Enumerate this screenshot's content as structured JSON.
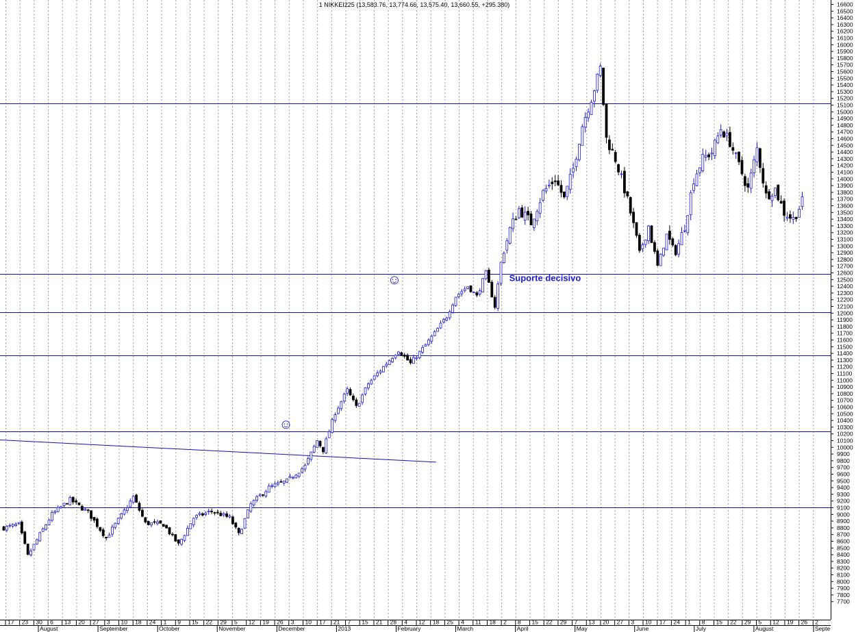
{
  "chart_data": {
    "type": "candlestick",
    "title": "1 NIKKEI225 (13,583.76, 13,774.66, 13,575.40, 13,660.55, +295.380)",
    "ylim": [
      7600,
      16600
    ],
    "ytick_step": 100,
    "grid": "vertical dotted",
    "colors": {
      "up": "#1a1ad6",
      "down": "#000000",
      "hline": "#1010b0",
      "annotation": "#1a1ad6"
    },
    "x_tick_labels": [
      "17",
      "23",
      "30",
      "6",
      "13",
      "20",
      "27",
      "3",
      "10",
      "18",
      "24",
      "1",
      "9",
      "15",
      "22",
      "29",
      "5",
      "12",
      "19",
      "26",
      "3",
      "10",
      "17",
      "21",
      "7",
      "15",
      "21",
      "28",
      "4",
      "12",
      "18",
      "25",
      "4",
      "11",
      "18",
      "2",
      "8",
      "15",
      "22",
      "29",
      "7",
      "13",
      "20",
      "27",
      "3",
      "10",
      "17",
      "24",
      "1",
      "8",
      "15",
      "22",
      "29",
      "5",
      "12",
      "19",
      "26",
      "2"
    ],
    "month_labels": [
      "August",
      "September",
      "October",
      "November",
      "December",
      "2013",
      "February",
      "March",
      "April",
      "May",
      "June",
      "July",
      "August",
      "Septe"
    ],
    "horizontal_lines": [
      15130,
      12580,
      12010,
      11370,
      10240,
      9110
    ],
    "trendline": {
      "from": [
        0,
        10110
      ],
      "to": [
        132,
        9780
      ]
    },
    "annotations": [
      {
        "text": "Suporte decisivo",
        "x_index": 184,
        "y": 12480
      },
      {
        "text": "☺",
        "x_index": 94,
        "y": 10280
      },
      {
        "text": "☺",
        "x_index": 130,
        "y": 12430
      }
    ],
    "keypoints": [
      [
        0,
        8800
      ],
      [
        5,
        8850
      ],
      [
        8,
        8380
      ],
      [
        12,
        8700
      ],
      [
        16,
        9000
      ],
      [
        22,
        9220
      ],
      [
        28,
        9030
      ],
      [
        34,
        8650
      ],
      [
        40,
        9050
      ],
      [
        43,
        9260
      ],
      [
        47,
        8870
      ],
      [
        53,
        8850
      ],
      [
        58,
        8550
      ],
      [
        63,
        8950
      ],
      [
        69,
        9050
      ],
      [
        75,
        8950
      ],
      [
        78,
        8700
      ],
      [
        82,
        9150
      ],
      [
        88,
        9400
      ],
      [
        94,
        9500
      ],
      [
        100,
        9720
      ],
      [
        104,
        10100
      ],
      [
        106,
        9960
      ],
      [
        110,
        10520
      ],
      [
        114,
        10850
      ],
      [
        117,
        10600
      ],
      [
        121,
        10950
      ],
      [
        126,
        11200
      ],
      [
        131,
        11450
      ],
      [
        135,
        11250
      ],
      [
        139,
        11470
      ],
      [
        143,
        11700
      ],
      [
        147,
        11950
      ],
      [
        150,
        12250
      ],
      [
        154,
        12400
      ],
      [
        157,
        12250
      ],
      [
        160,
        12600
      ],
      [
        163,
        12100
      ],
      [
        165,
        12750
      ],
      [
        168,
        13250
      ],
      [
        171,
        13550
      ],
      [
        175,
        13350
      ],
      [
        179,
        13800
      ],
      [
        183,
        14000
      ],
      [
        186,
        13700
      ],
      [
        189,
        14150
      ],
      [
        192,
        14800
      ],
      [
        195,
        15200
      ],
      [
        198,
        15650
      ],
      [
        200,
        14600
      ],
      [
        203,
        14300
      ],
      [
        206,
        13850
      ],
      [
        208,
        13500
      ],
      [
        211,
        12900
      ],
      [
        214,
        13300
      ],
      [
        217,
        12700
      ],
      [
        220,
        13150
      ],
      [
        223,
        12900
      ],
      [
        226,
        13300
      ],
      [
        229,
        14000
      ],
      [
        232,
        14300
      ],
      [
        235,
        14400
      ],
      [
        238,
        14750
      ],
      [
        241,
        14550
      ],
      [
        244,
        14200
      ],
      [
        247,
        13850
      ],
      [
        250,
        14450
      ],
      [
        253,
        13750
      ],
      [
        256,
        13850
      ],
      [
        259,
        13500
      ],
      [
        262,
        13400
      ],
      [
        265,
        13660
      ]
    ]
  }
}
